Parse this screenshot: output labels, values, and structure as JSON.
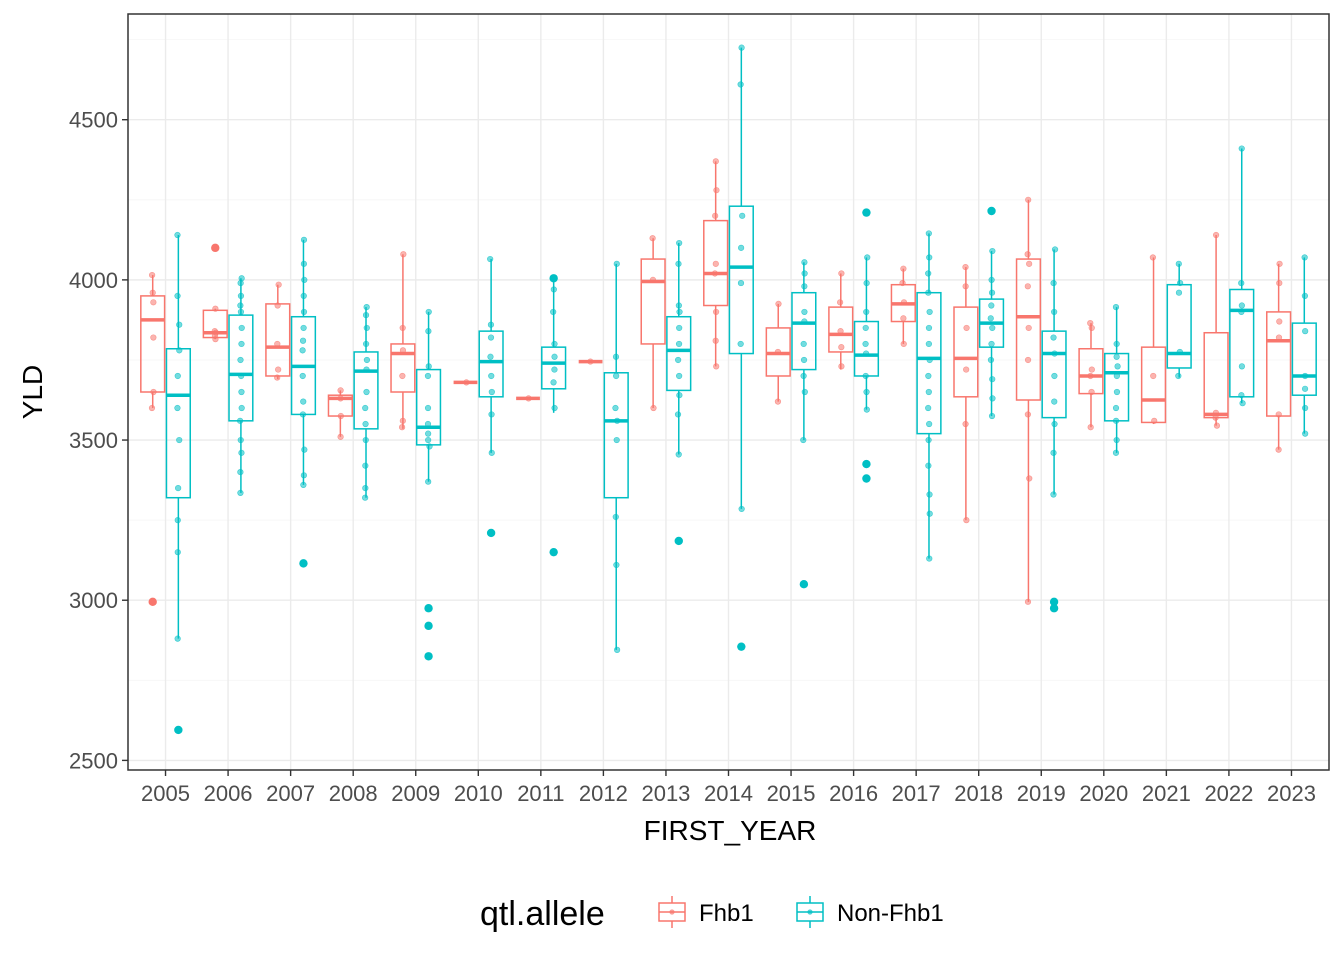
{
  "chart_data": {
    "type": "boxplot",
    "xlabel": "FIRST_YEAR",
    "ylabel": "YLD",
    "ylim": [
      2470,
      4830
    ],
    "yticks": [
      2500,
      3000,
      3500,
      4000,
      4500
    ],
    "grid": true,
    "legend": {
      "title": "qtl.allele",
      "placement": "bottom"
    },
    "categories": [
      "2005",
      "2006",
      "2007",
      "2008",
      "2009",
      "2010",
      "2011",
      "2012",
      "2013",
      "2014",
      "2015",
      "2016",
      "2017",
      "2018",
      "2019",
      "2020",
      "2021",
      "2022",
      "2023"
    ],
    "series": [
      {
        "name": "Fhb1",
        "color": "#F8766D",
        "boxes": [
          {
            "cat": "2005",
            "lower": 3600,
            "q1": 3650,
            "median": 3875,
            "q3": 3950,
            "upper": 4015,
            "outliers": [
              2995
            ],
            "points": [
              4015,
              3960,
              3930,
              3820,
              3650,
              3600
            ]
          },
          {
            "cat": "2006",
            "lower": 3815,
            "q1": 3820,
            "median": 3835,
            "q3": 3905,
            "upper": 3910,
            "outliers": [
              4100
            ],
            "points": [
              3910,
              3840,
              3835,
              3825,
              3815
            ]
          },
          {
            "cat": "2007",
            "lower": 3690,
            "q1": 3700,
            "median": 3790,
            "q3": 3925,
            "upper": 3985,
            "outliers": [],
            "points": [
              3985,
              3920,
              3800,
              3720,
              3695
            ]
          },
          {
            "cat": "2008",
            "lower": 3510,
            "q1": 3575,
            "median": 3630,
            "q3": 3640,
            "upper": 3655,
            "outliers": [],
            "points": [
              3655,
              3630,
              3575,
              3510
            ]
          },
          {
            "cat": "2009",
            "lower": 3535,
            "q1": 3650,
            "median": 3770,
            "q3": 3800,
            "upper": 4080,
            "outliers": [],
            "points": [
              4080,
              3850,
              3780,
              3700,
              3560,
              3540
            ]
          },
          {
            "cat": "2010",
            "lower": 3680,
            "q1": 3680,
            "median": 3680,
            "q3": 3680,
            "upper": 3680,
            "outliers": [],
            "points": [
              3680
            ]
          },
          {
            "cat": "2011",
            "lower": 3630,
            "q1": 3630,
            "median": 3630,
            "q3": 3630,
            "upper": 3630,
            "outliers": [],
            "points": [
              3630
            ]
          },
          {
            "cat": "2012",
            "lower": 3745,
            "q1": 3745,
            "median": 3745,
            "q3": 3745,
            "upper": 3745,
            "outliers": [],
            "points": [
              3745
            ]
          },
          {
            "cat": "2013",
            "lower": 3600,
            "q1": 3800,
            "median": 3995,
            "q3": 4065,
            "upper": 4130,
            "outliers": [],
            "points": [
              4130,
              4000,
              3600
            ]
          },
          {
            "cat": "2014",
            "lower": 3730,
            "q1": 3920,
            "median": 4020,
            "q3": 4185,
            "upper": 4370,
            "outliers": [],
            "points": [
              4370,
              4280,
              4200,
              4050,
              4020,
              3900,
              3810,
              3730
            ]
          },
          {
            "cat": "2015",
            "lower": 3620,
            "q1": 3700,
            "median": 3770,
            "q3": 3850,
            "upper": 3925,
            "outliers": [],
            "points": [
              3925,
              3775,
              3620
            ]
          },
          {
            "cat": "2016",
            "lower": 3720,
            "q1": 3775,
            "median": 3830,
            "q3": 3915,
            "upper": 4020,
            "outliers": [],
            "points": [
              4020,
              3930,
              3840,
              3790,
              3730
            ]
          },
          {
            "cat": "2017",
            "lower": 3800,
            "q1": 3870,
            "median": 3925,
            "q3": 3985,
            "upper": 4035,
            "outliers": [],
            "points": [
              4035,
              3990,
              3930,
              3880,
              3800
            ]
          },
          {
            "cat": "2018",
            "lower": 3250,
            "q1": 3635,
            "median": 3755,
            "q3": 3915,
            "upper": 4040,
            "outliers": [],
            "points": [
              4040,
              3980,
              3850,
              3720,
              3550,
              3250
            ]
          },
          {
            "cat": "2019",
            "lower": 2995,
            "q1": 3625,
            "median": 3885,
            "q3": 4065,
            "upper": 4250,
            "outliers": [],
            "points": [
              4250,
              4080,
              4050,
              3980,
              3850,
              3750,
              3580,
              3380,
              2995
            ]
          },
          {
            "cat": "2020",
            "lower": 3540,
            "q1": 3645,
            "median": 3700,
            "q3": 3785,
            "upper": 3865,
            "outliers": [],
            "points": [
              3865,
              3850,
              3720,
              3700,
              3650,
              3540
            ]
          },
          {
            "cat": "2021",
            "lower": 3550,
            "q1": 3555,
            "median": 3625,
            "q3": 3790,
            "upper": 4070,
            "outliers": [],
            "points": [
              4070,
              3700,
              3560
            ]
          },
          {
            "cat": "2022",
            "lower": 3545,
            "q1": 3570,
            "median": 3580,
            "q3": 3835,
            "upper": 4140,
            "outliers": [],
            "points": [
              4140,
              3585,
              3570,
              3545
            ]
          },
          {
            "cat": "2023",
            "lower": 3470,
            "q1": 3575,
            "median": 3810,
            "q3": 3900,
            "upper": 4050,
            "outliers": [],
            "points": [
              4050,
              3990,
              3870,
              3820,
              3580,
              3470
            ]
          }
        ]
      },
      {
        "name": "Non-Fhb1",
        "color": "#00BFC4",
        "boxes": [
          {
            "cat": "2005",
            "lower": 2880,
            "q1": 3320,
            "median": 3640,
            "q3": 3785,
            "upper": 4140,
            "outliers": [
              2595
            ],
            "points": [
              4140,
              3950,
              3860,
              3780,
              3700,
              3600,
              3500,
              3350,
              3250,
              3150,
              2880
            ]
          },
          {
            "cat": "2006",
            "lower": 3335,
            "q1": 3560,
            "median": 3705,
            "q3": 3890,
            "upper": 4005,
            "outliers": [],
            "points": [
              4005,
              3990,
              3950,
              3920,
              3900,
              3850,
              3800,
              3750,
              3700,
              3650,
              3600,
              3560,
              3500,
              3460,
              3400,
              3335
            ]
          },
          {
            "cat": "2007",
            "lower": 3360,
            "q1": 3580,
            "median": 3730,
            "q3": 3885,
            "upper": 4125,
            "outliers": [
              3115
            ],
            "points": [
              4125,
              4050,
              4000,
              3950,
              3900,
              3850,
              3810,
              3780,
              3700,
              3620,
              3580,
              3470,
              3390,
              3360
            ]
          },
          {
            "cat": "2008",
            "lower": 3320,
            "q1": 3535,
            "median": 3715,
            "q3": 3775,
            "upper": 3915,
            "outliers": [],
            "points": [
              3915,
              3890,
              3850,
              3800,
              3750,
              3720,
              3650,
              3600,
              3550,
              3500,
              3420,
              3350,
              3320
            ]
          },
          {
            "cat": "2009",
            "lower": 3370,
            "q1": 3485,
            "median": 3540,
            "q3": 3720,
            "upper": 3900,
            "outliers": [
              2975,
              2920,
              2825
            ],
            "points": [
              3900,
              3840,
              3730,
              3700,
              3600,
              3550,
              3520,
              3500,
              3480,
              3370
            ]
          },
          {
            "cat": "2010",
            "lower": 3460,
            "q1": 3635,
            "median": 3745,
            "q3": 3840,
            "upper": 4065,
            "outliers": [
              3210
            ],
            "points": [
              4065,
              3860,
              3820,
              3760,
              3700,
              3650,
              3580,
              3460
            ]
          },
          {
            "cat": "2011",
            "lower": 3585,
            "q1": 3660,
            "median": 3740,
            "q3": 3790,
            "upper": 4000,
            "outliers": [
              4005,
              3150
            ],
            "points": [
              3970,
              3900,
              3800,
              3760,
              3720,
              3680,
              3600
            ]
          },
          {
            "cat": "2012",
            "lower": 2845,
            "q1": 3320,
            "median": 3560,
            "q3": 3710,
            "upper": 4050,
            "outliers": [],
            "points": [
              4050,
              3760,
              3700,
              3600,
              3560,
              3500,
              3260,
              3110,
              2845
            ]
          },
          {
            "cat": "2013",
            "lower": 3455,
            "q1": 3655,
            "median": 3780,
            "q3": 3885,
            "upper": 4115,
            "outliers": [
              3185
            ],
            "points": [
              4115,
              4050,
              3920,
              3900,
              3850,
              3800,
              3750,
              3700,
              3640,
              3580,
              3455
            ]
          },
          {
            "cat": "2014",
            "lower": 3285,
            "q1": 3770,
            "median": 4040,
            "q3": 4230,
            "upper": 4725,
            "outliers": [
              2855
            ],
            "points": [
              4725,
              4610,
              4200,
              4100,
              3990,
              3800,
              3285
            ]
          },
          {
            "cat": "2015",
            "lower": 3500,
            "q1": 3720,
            "median": 3865,
            "q3": 3960,
            "upper": 4055,
            "outliers": [
              3050
            ],
            "points": [
              4055,
              4020,
              3980,
              3900,
              3870,
              3800,
              3750,
              3700,
              3650,
              3500
            ]
          },
          {
            "cat": "2016",
            "lower": 3595,
            "q1": 3700,
            "median": 3765,
            "q3": 3870,
            "upper": 4070,
            "outliers": [
              4210,
              3425,
              3380
            ],
            "points": [
              4070,
              3990,
              3900,
              3850,
              3800,
              3770,
              3700,
              3650,
              3595
            ]
          },
          {
            "cat": "2017",
            "lower": 3130,
            "q1": 3520,
            "median": 3755,
            "q3": 3960,
            "upper": 4145,
            "outliers": [],
            "points": [
              4145,
              4070,
              4020,
              3960,
              3900,
              3850,
              3800,
              3750,
              3700,
              3650,
              3600,
              3550,
              3500,
              3420,
              3330,
              3270,
              3130
            ]
          },
          {
            "cat": "2018",
            "lower": 3575,
            "q1": 3790,
            "median": 3865,
            "q3": 3940,
            "upper": 4090,
            "outliers": [
              4215
            ],
            "points": [
              4090,
              4000,
              3960,
              3920,
              3880,
              3850,
              3800,
              3750,
              3690,
              3630,
              3575
            ]
          },
          {
            "cat": "2019",
            "lower": 3330,
            "q1": 3570,
            "median": 3770,
            "q3": 3840,
            "upper": 4095,
            "outliers": [
              2995,
              2975
            ],
            "points": [
              4095,
              3990,
              3900,
              3820,
              3770,
              3700,
              3620,
              3550,
              3460,
              3330
            ]
          },
          {
            "cat": "2020",
            "lower": 3460,
            "q1": 3560,
            "median": 3710,
            "q3": 3770,
            "upper": 3915,
            "outliers": [],
            "points": [
              3915,
              3800,
              3760,
              3730,
              3700,
              3650,
              3600,
              3560,
              3500,
              3460
            ]
          },
          {
            "cat": "2021",
            "lower": 3695,
            "q1": 3725,
            "median": 3770,
            "q3": 3985,
            "upper": 4050,
            "outliers": [],
            "points": [
              4050,
              3990,
              3960,
              3775,
              3700
            ]
          },
          {
            "cat": "2022",
            "lower": 3615,
            "q1": 3635,
            "median": 3905,
            "q3": 3970,
            "upper": 4410,
            "outliers": [],
            "points": [
              4410,
              3990,
              3920,
              3900,
              3730,
              3640,
              3615
            ]
          },
          {
            "cat": "2023",
            "lower": 3520,
            "q1": 3640,
            "median": 3700,
            "q3": 3865,
            "upper": 4070,
            "outliers": [],
            "points": [
              4070,
              3950,
              3840,
              3700,
              3660,
              3600,
              3520
            ]
          }
        ]
      }
    ]
  }
}
